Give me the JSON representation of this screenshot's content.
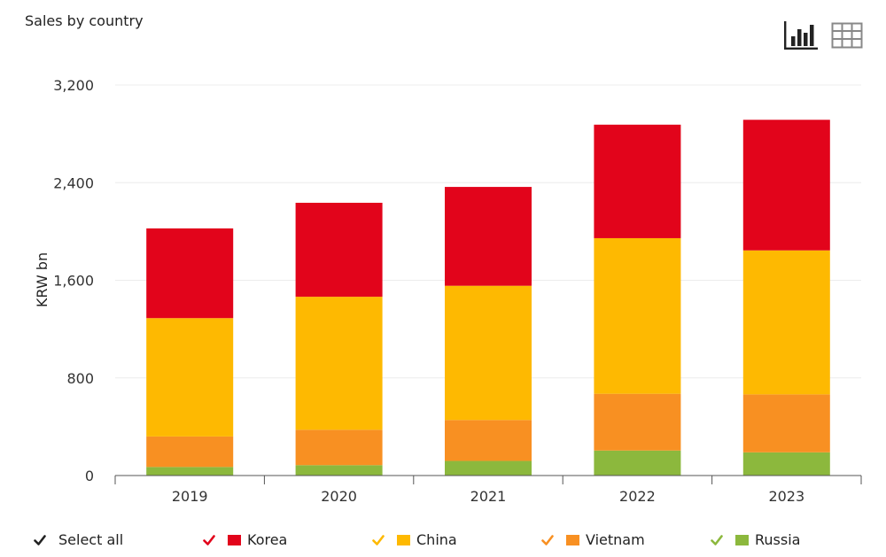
{
  "title": "Sales by country",
  "toolbar": {
    "chart_icon": "bar-chart-icon",
    "table_icon": "table-icon"
  },
  "legend": {
    "select_all": "Select all",
    "items": [
      {
        "label": "Korea",
        "color": "#e2041b"
      },
      {
        "label": "China",
        "color": "#feb901"
      },
      {
        "label": "Vietnam",
        "color": "#f89022"
      },
      {
        "label": "Russia",
        "color": "#8cb83d"
      }
    ]
  },
  "chart_data": {
    "type": "bar",
    "stacked": true,
    "title": "Sales by country",
    "xlabel": "",
    "ylabel": "KRW bn",
    "ylim": [
      0,
      3200
    ],
    "yticks": [
      0,
      800,
      1600,
      2400,
      3200
    ],
    "ytick_labels": [
      "0",
      "800",
      "1,600",
      "2,400",
      "3,200"
    ],
    "categories": [
      "2019",
      "2020",
      "2021",
      "2022",
      "2023"
    ],
    "grid": true,
    "legend_position": "bottom",
    "series": [
      {
        "name": "Russia",
        "color": "#8cb83d",
        "values": [
          70,
          85,
          120,
          205,
          190
        ]
      },
      {
        "name": "Vietnam",
        "color": "#f89022",
        "values": [
          250,
          290,
          335,
          465,
          475
        ]
      },
      {
        "name": "China",
        "color": "#feb901",
        "values": [
          970,
          1090,
          1100,
          1275,
          1180
        ]
      },
      {
        "name": "Korea",
        "color": "#e2041b",
        "values": [
          735,
          770,
          810,
          930,
          1070
        ]
      }
    ]
  }
}
